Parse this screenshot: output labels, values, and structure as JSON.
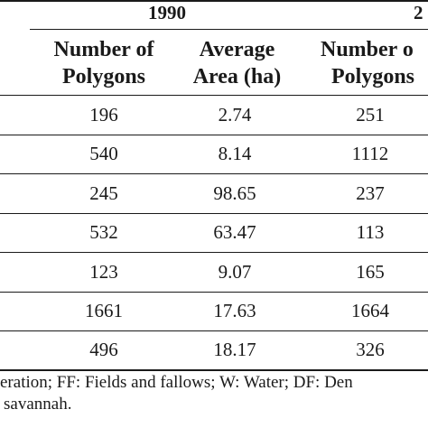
{
  "table": {
    "year_groups": [
      "1990",
      "2"
    ],
    "columns": [
      [
        "Number of",
        "Polygons"
      ],
      [
        "Average",
        "Area (ha)"
      ],
      [
        "Number o",
        "Polygons"
      ]
    ],
    "rows": [
      [
        "196",
        "2.74",
        "251"
      ],
      [
        "540",
        "8.14",
        "1112"
      ],
      [
        "245",
        "98.65",
        "237"
      ],
      [
        "532",
        "63.47",
        "113"
      ],
      [
        "123",
        "9.07",
        "165"
      ],
      [
        "1661",
        "17.63",
        "1664"
      ],
      [
        "496",
        "18.17",
        "326"
      ]
    ]
  },
  "footnote": {
    "line1": "eration; FF: Fields and fallows; W: Water; DF: Den",
    "line2": "savannah."
  }
}
